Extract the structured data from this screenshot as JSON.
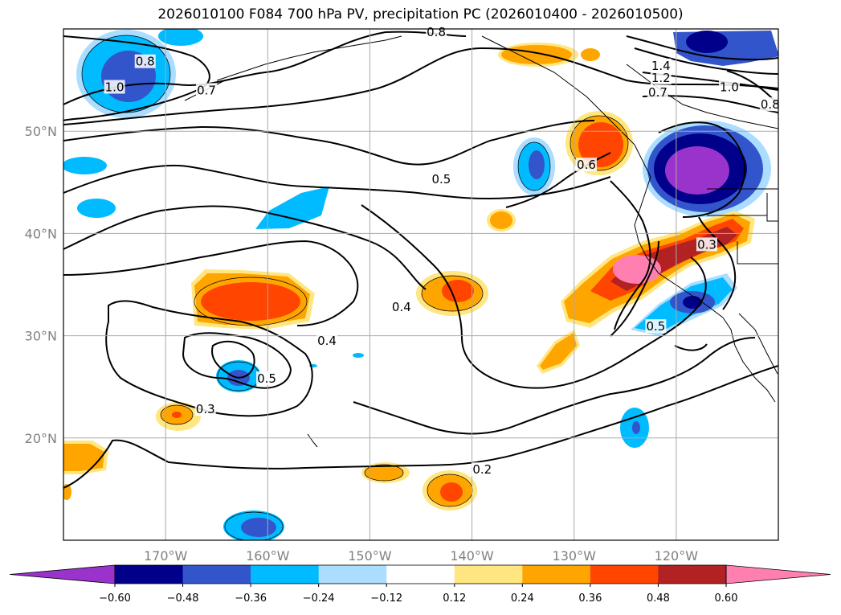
{
  "title": "2026010100 F084 700 hPa PV, precipitation PC (2026010400 - 2026010500)",
  "map": {
    "lon_range": [
      -180,
      -110
    ],
    "lat_range": [
      10,
      60
    ],
    "lon_ticks": [
      {
        "value": -170,
        "label": "170°W"
      },
      {
        "value": -160,
        "label": "160°W"
      },
      {
        "value": -150,
        "label": "150°W"
      },
      {
        "value": -140,
        "label": "140°W"
      },
      {
        "value": -130,
        "label": "130°W"
      },
      {
        "value": -120,
        "label": "120°W"
      }
    ],
    "lat_ticks": [
      {
        "value": 20,
        "label": "20°N"
      },
      {
        "value": 30,
        "label": "30°N"
      },
      {
        "value": 40,
        "label": "40°N"
      },
      {
        "value": 50,
        "label": "50°N"
      }
    ]
  },
  "contour_labels": [
    {
      "text": "0.8",
      "lon": -172,
      "lat": 56.8
    },
    {
      "text": "1.0",
      "lon": -175,
      "lat": 54.3
    },
    {
      "text": "0.7",
      "lon": -166,
      "lat": 54
    },
    {
      "text": "0.8",
      "lon": -143.5,
      "lat": 59.7
    },
    {
      "text": "1.4",
      "lon": -121.5,
      "lat": 56.4
    },
    {
      "text": "1.2",
      "lon": -121.5,
      "lat": 55.2
    },
    {
      "text": "1.0",
      "lon": -114.8,
      "lat": 54.3
    },
    {
      "text": "0.7",
      "lon": -121.8,
      "lat": 53.8
    },
    {
      "text": "0.8",
      "lon": -110.8,
      "lat": 52.6
    },
    {
      "text": "0.5",
      "lon": -143,
      "lat": 45.3
    },
    {
      "text": "0.6",
      "lon": -128.8,
      "lat": 46.7
    },
    {
      "text": "0.3",
      "lon": -117,
      "lat": 38.9
    },
    {
      "text": "0.5",
      "lon": -122,
      "lat": 30.9
    },
    {
      "text": "0.4",
      "lon": -146.9,
      "lat": 32.8
    },
    {
      "text": "0.4",
      "lon": -154.2,
      "lat": 29.5
    },
    {
      "text": "0.5",
      "lon": -160.1,
      "lat": 25.8
    },
    {
      "text": "0.3",
      "lon": -166.1,
      "lat": 22.8
    },
    {
      "text": "0.2",
      "lon": -139,
      "lat": 16.9
    }
  ],
  "colorbar": {
    "colors": [
      "#9933cc",
      "#00008b",
      "#3355cc",
      "#00bbff",
      "#aaddff",
      "#ffffff",
      "#ffe680",
      "#ffa500",
      "#ff4500",
      "#b22222",
      "#ff80b0"
    ],
    "tick_labels": [
      "−0.60",
      "−0.48",
      "−0.36",
      "−0.24",
      "−0.12",
      "0.12",
      "0.24",
      "0.36",
      "0.48",
      "0.60"
    ]
  }
}
